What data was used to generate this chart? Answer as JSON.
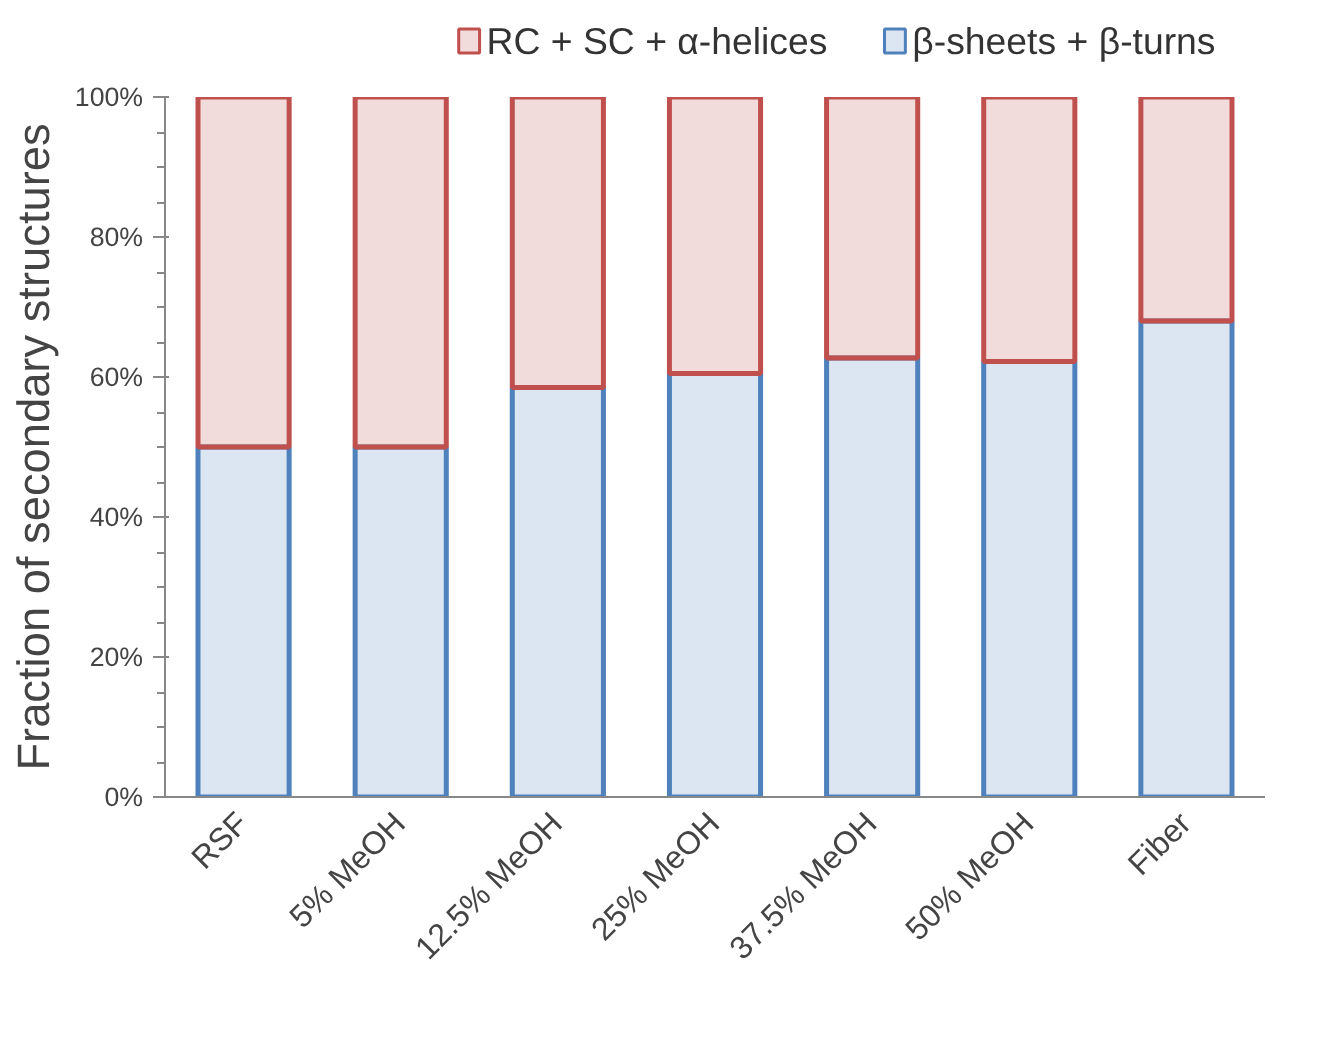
{
  "chart_data": {
    "type": "bar",
    "stacked": true,
    "ylabel": "Fraction of secondary structures",
    "categories": [
      "RSF",
      "5% MeOH",
      "12.5% MeOH",
      "25% MeOH",
      "37.5% MeOH",
      "50% MeOH",
      "Fiber"
    ],
    "series": [
      {
        "name": "β-sheets + β-turns",
        "color": "#4f81bd",
        "values": [
          50,
          50,
          58.5,
          60.5,
          62.7,
          62.2,
          68
        ]
      },
      {
        "name": "RC + SC + α-helices",
        "color": "#c0504d",
        "values": [
          50,
          50,
          41.5,
          39.5,
          37.3,
          37.8,
          32
        ]
      }
    ],
    "ylim": [
      0,
      100
    ],
    "yticks": [
      {
        "value": 0,
        "label": "0%"
      },
      {
        "value": 20,
        "label": "20%"
      },
      {
        "value": 40,
        "label": "40%"
      },
      {
        "value": 60,
        "label": "60%"
      },
      {
        "value": 80,
        "label": "80%"
      },
      {
        "value": 100,
        "label": "100%"
      }
    ],
    "grid": false,
    "legend": "top"
  }
}
